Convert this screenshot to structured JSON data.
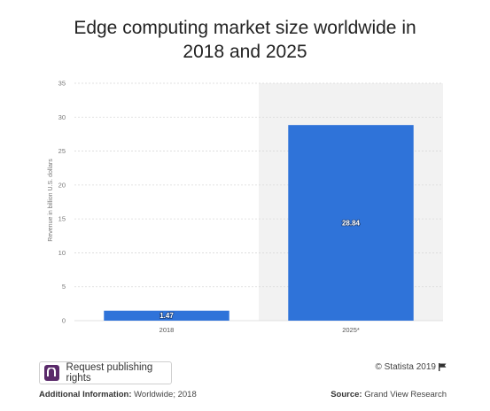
{
  "chart_data": {
    "type": "bar",
    "title": "Edge computing market size worldwide in 2018 and 2025",
    "title_lines": [
      "Edge computing market size worldwide in",
      "2018 and 2025"
    ],
    "categories": [
      "2018",
      "2025*"
    ],
    "values": [
      1.47,
      28.84
    ],
    "value_labels": [
      "1.47",
      "28.84"
    ],
    "ylabel": "Revenue in billion U.S. dollars",
    "xlabel": "",
    "ylim": [
      0,
      35
    ],
    "yticks": [
      0,
      5,
      10,
      15,
      20,
      25,
      30,
      35
    ],
    "grid": true,
    "forecast_shaded_category": "2025*",
    "colors": {
      "bar": "#2f73d9",
      "forecast_band": "#f2f2f2",
      "grid": "#d9d9d9"
    }
  },
  "actions": {
    "publish_label": "Request publishing rights",
    "publish_icon": "statista-logo-icon"
  },
  "credit": {
    "text": "© Statista 2019",
    "icon": "flag-icon"
  },
  "footer": {
    "additional_info_label": "Additional Information:",
    "additional_info_value": "Worldwide; 2018",
    "source_label": "Source:",
    "source_value": "Grand View Research"
  }
}
